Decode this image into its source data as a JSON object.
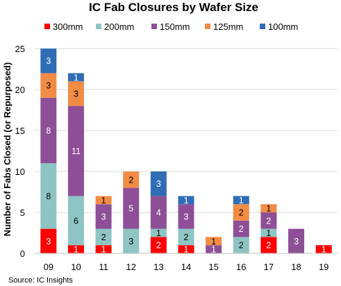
{
  "chart_data": {
    "type": "bar",
    "stacked": true,
    "title": "IC Fab Closures by Wafer Size",
    "ylabel": "Number of Fabs Closed (or Repurposed)",
    "xlabel": "",
    "ylim": [
      0,
      25
    ],
    "yticks": [
      0,
      5,
      10,
      15,
      20,
      25
    ],
    "grid": true,
    "legend_position": "top",
    "categories": [
      "09",
      "10",
      "11",
      "12",
      "13",
      "14",
      "15",
      "16",
      "17",
      "18",
      "19"
    ],
    "series": [
      {
        "name": "300mm",
        "color": "#ff0000",
        "label_color": "#ffffff",
        "values": [
          3,
          1,
          1,
          0,
          2,
          1,
          0,
          0,
          2,
          0,
          1
        ]
      },
      {
        "name": "200mm",
        "color": "#8ec5c4",
        "label_color": "#000000",
        "values": [
          8,
          6,
          2,
          3,
          1,
          2,
          0,
          2,
          1,
          0,
          0
        ]
      },
      {
        "name": "150mm",
        "color": "#8d4f96",
        "label_color": "#ffffff",
        "values": [
          8,
          11,
          3,
          5,
          4,
          3,
          1,
          2,
          2,
          3,
          0
        ]
      },
      {
        "name": "125mm",
        "color": "#f28c45",
        "label_color": "#000000",
        "values": [
          3,
          3,
          1,
          2,
          0,
          0,
          1,
          2,
          1,
          0,
          0
        ]
      },
      {
        "name": "100mm",
        "color": "#2f6db6",
        "label_color": "#ffffff",
        "values": [
          3,
          1,
          0,
          0,
          3,
          1,
          0,
          1,
          0,
          0,
          0
        ]
      }
    ],
    "source": "Source:  IC Insights"
  }
}
